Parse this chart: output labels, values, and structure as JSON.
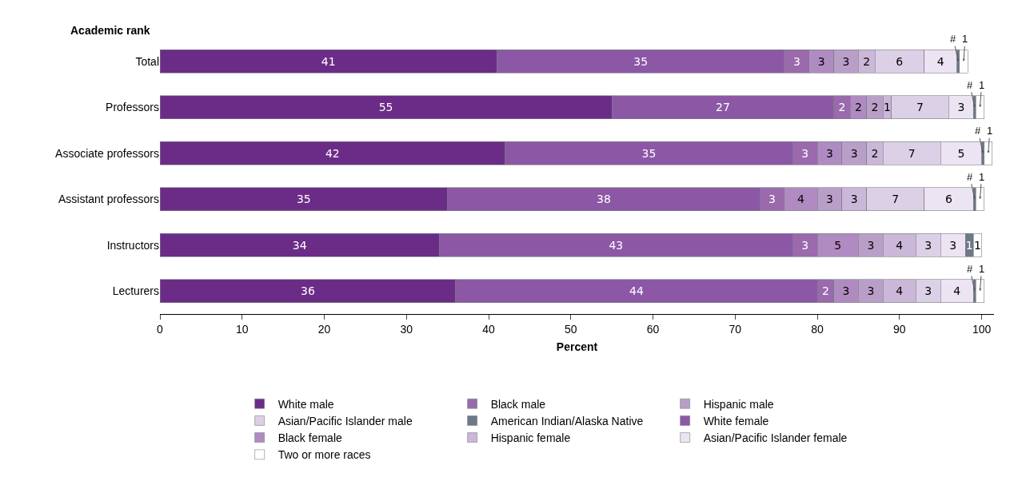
{
  "chart_data": {
    "type": "bar",
    "orientation": "horizontal",
    "stacked": true,
    "ylabel": "Academic rank",
    "xlabel": "Percent",
    "categories": [
      "Total",
      "Professors",
      "Associate professors",
      "Assistant professors",
      "Instructors",
      "Lecturers"
    ],
    "xlim": [
      0,
      101.5
    ],
    "xticks": [
      0,
      10,
      20,
      30,
      40,
      50,
      60,
      70,
      80,
      90,
      100
    ],
    "grid": false,
    "legend": "bottom",
    "series": [
      {
        "name": "White male",
        "color": "#6b2c87",
        "values": [
          41,
          55,
          42,
          35,
          34,
          36
        ],
        "value_labels": [
          "41",
          "55",
          "42",
          "35",
          "34",
          "36"
        ]
      },
      {
        "name": "White female",
        "color": "#8c58a6",
        "values": [
          35,
          27,
          35,
          38,
          43,
          44
        ],
        "value_labels": [
          "35",
          "27",
          "35",
          "38",
          "43",
          "44"
        ]
      },
      {
        "name": "Black male",
        "color": "#9a6aad",
        "values": [
          3,
          2,
          3,
          3,
          3,
          2
        ],
        "value_labels": [
          "3",
          "2",
          "3",
          "3",
          "3",
          "2"
        ]
      },
      {
        "name": "Black female",
        "color": "#b08bc1",
        "values": [
          3,
          2,
          3,
          4,
          5,
          3
        ],
        "value_labels": [
          "3",
          "2",
          "3",
          "4",
          "5",
          "3"
        ]
      },
      {
        "name": "Hispanic male",
        "color": "#b99fc8",
        "values": [
          3,
          2,
          3,
          3,
          3,
          3
        ],
        "value_labels": [
          "3",
          "2",
          "3",
          "3",
          "3",
          "3"
        ]
      },
      {
        "name": "Hispanic female",
        "color": "#cbb7d7",
        "values": [
          2,
          1,
          2,
          3,
          4,
          4
        ],
        "value_labels": [
          "2",
          "1",
          "2",
          "3",
          "4",
          "4"
        ]
      },
      {
        "name": "Asian/Pacific Islander male",
        "color": "#dcd0e6",
        "values": [
          6,
          7,
          7,
          7,
          3,
          3
        ],
        "value_labels": [
          "6",
          "7",
          "7",
          "7",
          "3",
          "3"
        ]
      },
      {
        "name": "Asian/Pacific Islander female",
        "color": "#ece4f2",
        "values": [
          4,
          3,
          5,
          6,
          3,
          4
        ],
        "value_labels": [
          "4",
          "3",
          "5",
          "6",
          "3",
          "4"
        ]
      },
      {
        "name": "American Indian/Alaska Native",
        "color": "#6e7886",
        "values": [
          0.3,
          0.3,
          0.3,
          0.3,
          1,
          0.3
        ],
        "value_labels": [
          "#",
          "#",
          "#",
          "#",
          "1",
          "#"
        ]
      },
      {
        "name": "Two or more races",
        "color": "#ffffff",
        "values": [
          1,
          1,
          1,
          1,
          1,
          1
        ],
        "value_labels": [
          "1",
          "1",
          "1",
          "1",
          "1",
          "1"
        ]
      }
    ]
  }
}
